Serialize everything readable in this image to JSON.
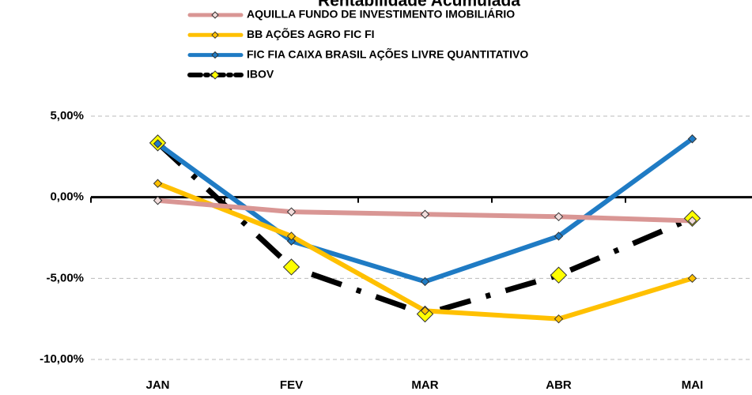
{
  "chart_data": {
    "type": "line",
    "title": "Rentabilidade Acumulada",
    "categories": [
      "JAN",
      "FEV",
      "MAR",
      "ABR",
      "MAI"
    ],
    "series": [
      {
        "name": "AQUILLA FUNDO DE INVESTIMENTO IMOBILIÁRIO",
        "color": "#d99694",
        "marker_color": "#f2dcdb",
        "values": [
          -0.2,
          -0.9,
          -1.05,
          -1.2,
          -1.45
        ]
      },
      {
        "name": "BB AÇÕES AGRO FIC FI",
        "color": "#ffc000",
        "marker_color": "#ffc000",
        "values": [
          0.85,
          -2.4,
          -7.0,
          -7.5,
          -5.0
        ]
      },
      {
        "name": "FIC FIA CAIXA BRASIL AÇÕES LIVRE QUANTITATIVO",
        "color": "#1f7bc4",
        "marker_color": "#1f7bc4",
        "values": [
          3.3,
          -2.7,
          -5.2,
          -2.4,
          3.6
        ]
      },
      {
        "name": "IBOV",
        "color": "#000000",
        "marker_color": "#ffff00",
        "dash": "dash-dot",
        "values": [
          3.35,
          -4.3,
          -7.2,
          -4.8,
          -1.3
        ]
      }
    ],
    "ylim": [
      -10,
      5
    ],
    "yticks": [
      {
        "value": 5,
        "label": "5,00%"
      },
      {
        "value": 0,
        "label": "0,00%"
      },
      {
        "value": -5,
        "label": "-5,00%"
      },
      {
        "value": -10,
        "label": "-10,00%"
      }
    ],
    "grid": true
  }
}
